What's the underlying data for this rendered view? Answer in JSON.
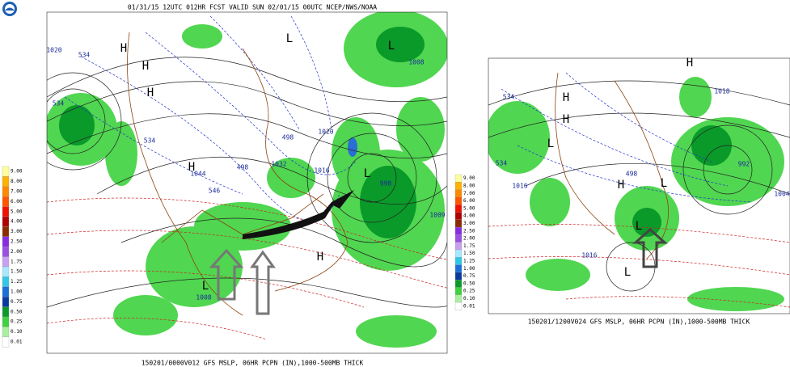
{
  "header": {
    "title": "01/31/15 12UTC 012HR FCST VALID SUN 02/01/15 00UTC NCEP/NWS/NOAA"
  },
  "left_map": {
    "footer": "150201/0000V012 GFS MSLP, 06HR PCPN (IN),1000-500MB THICK",
    "legend": [
      "9.00",
      "8.00",
      "7.00",
      "6.00",
      "5.00",
      "4.00",
      "3.00",
      "2.50",
      "2.00",
      "1.75",
      "1.50",
      "1.25",
      "1.00",
      "0.75",
      "0.50",
      "0.25",
      "0.10",
      "0.01"
    ],
    "labels": [
      "H",
      "H",
      "H",
      "L",
      "L",
      "1020",
      "534",
      "534",
      "1008",
      "1020",
      "1044",
      "1032",
      "1016",
      "L",
      "998",
      "546",
      "498",
      "498",
      "1009",
      "H",
      "L",
      "1008",
      "H",
      "534"
    ]
  },
  "right_map": {
    "footer": "150201/1200V024 GFS MSLP, 06HR PCPN (IN),1000-500MB THICK",
    "legend": [
      "9.00",
      "8.00",
      "7.00",
      "6.00",
      "5.00",
      "4.00",
      "3.00",
      "2.50",
      "2.00",
      "1.75",
      "1.50",
      "1.25",
      "1.00",
      "0.75",
      "0.50",
      "0.25",
      "0.10",
      "0.01"
    ],
    "labels": [
      "H",
      "H",
      "H",
      "L",
      "498",
      "1016",
      "H",
      "L",
      "992",
      "1004",
      "1016",
      "L",
      "L",
      "1018",
      "534",
      "534"
    ]
  }
}
